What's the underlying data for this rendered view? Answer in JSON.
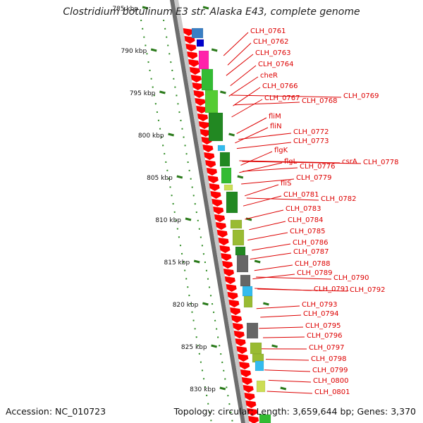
{
  "title": "Clostridium botulinum E3 str. Alaska E43, complete genome",
  "accession": "Accession: NC_010723",
  "summary": "Topology: circular; Length: 3,659,644 bp; Genes: 3,370",
  "ticks": [
    "785 kbp",
    "790 kbp",
    "795 kbp",
    "800 kbp",
    "805 kbp",
    "810 kbp",
    "815 kbp",
    "820 kbp",
    "825 kbp",
    "830 kbp"
  ],
  "gene_labels": [
    "CLH_0761",
    "CLH_0762",
    "CLH_0763",
    "CLH_0764",
    "cheR",
    "CLH_0766",
    "CLH_0767",
    "CLH_0768",
    "CLH_0769",
    "fliM",
    "fliN",
    "CLH_0772",
    "CLH_0773",
    "flgK",
    "flgL",
    "CLH_0776",
    "csrA",
    "CLH_0778",
    "CLH_0779",
    "fliS",
    "CLH_0781",
    "CLH_0782",
    "CLH_0783",
    "CLH_0784",
    "CLH_0785",
    "CLH_0786",
    "CLH_0787",
    "CLH_0788",
    "CLH_0789",
    "CLH_0790",
    "CLH_0791",
    "CLH_0792",
    "CLH_0793",
    "CLH_0794",
    "CLH_0795",
    "CLH_0796",
    "CLH_0797",
    "CLH_0798",
    "CLH_0799",
    "CLH_0800",
    "CLH_0801"
  ],
  "colors": {
    "gene_arrow": "#ff0000",
    "label_text": "#dd0000",
    "connector": "#dd0000",
    "backbone": "#8a8a8a",
    "tick_mark": "#2a7a1a",
    "dots": "#2e8b22",
    "palette": [
      "#3a7fc4",
      "#0000cc",
      "#ff22aa",
      "#33bb33",
      "#55cc33",
      "#228822",
      "#99bb33",
      "#666666",
      "#33bbee",
      "#aaaaaa",
      "#ccdd55"
    ]
  }
}
